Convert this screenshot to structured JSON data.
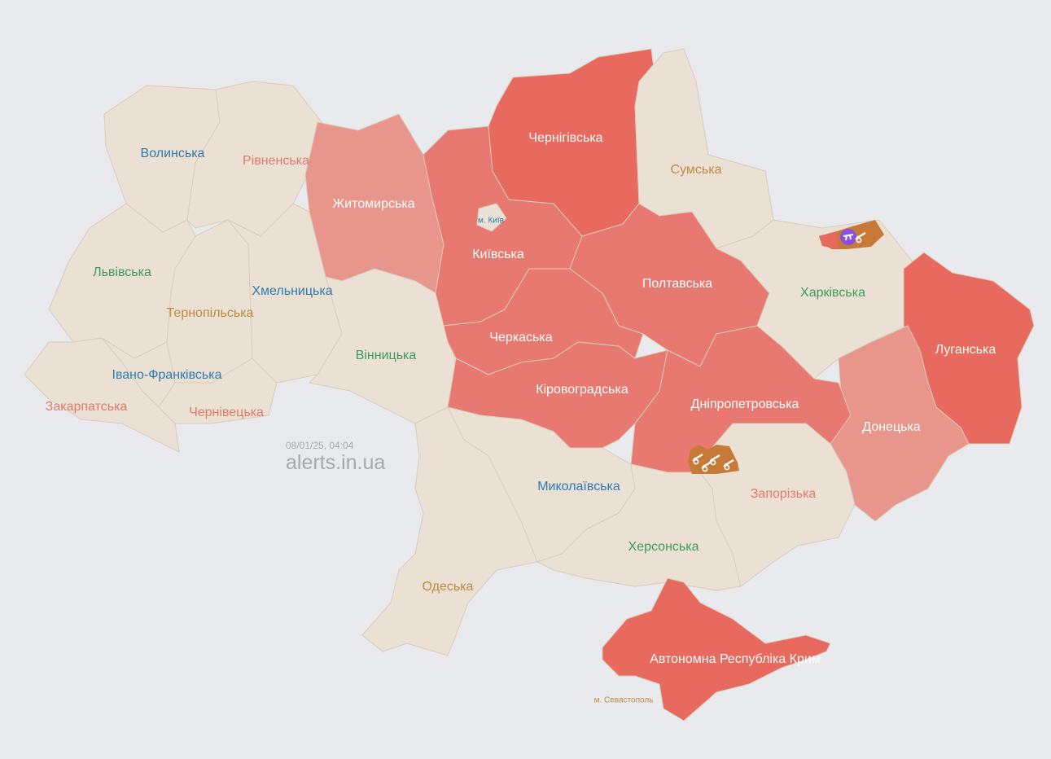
{
  "colors": {
    "background": "#e8eaed",
    "no_alert": "#eae0d4",
    "alert": "#e8695d",
    "alert_medium": "#e87970",
    "alert_light": "#e8958c",
    "occupied_artillery": "#c77a38",
    "drone_marker": "#8a4fe0"
  },
  "timestamp": "08/01/25, 04:04",
  "brand": "alerts.in.ua",
  "regions": [
    {
      "id": "volyn",
      "label": "Волинська",
      "status": "none",
      "label_color": "#2e7bb0"
    },
    {
      "id": "rivne",
      "label": "Рівненська",
      "status": "none",
      "label_color": "#e07a6a"
    },
    {
      "id": "lviv",
      "label": "Львівська",
      "status": "none",
      "label_color": "#3f9a5b"
    },
    {
      "id": "zakarpattia",
      "label": "Закарпатська",
      "status": "none",
      "label_color": "#e07a6a"
    },
    {
      "id": "ivano",
      "label": "Івано-Франківська",
      "status": "none",
      "label_color": "#2e7bb0"
    },
    {
      "id": "ternopil",
      "label": "Тернопільська",
      "status": "none",
      "label_color": "#c08a3e"
    },
    {
      "id": "chernivtsi",
      "label": "Чернівецька",
      "status": "none",
      "label_color": "#e07a6a"
    },
    {
      "id": "khmelnytskyi",
      "label": "Хмельницька",
      "status": "none",
      "label_color": "#2e7bb0"
    },
    {
      "id": "zhytomyr",
      "label": "Житомирська",
      "status": "alert_light",
      "label_color": "#ffffff"
    },
    {
      "id": "vinnytsia",
      "label": "Вінницька",
      "status": "none",
      "label_color": "#3f9a5b"
    },
    {
      "id": "kyivska",
      "label": "Київська",
      "status": "alert_medium",
      "label_color": "#ffffff"
    },
    {
      "id": "chernihiv",
      "label": "Чернігівська",
      "status": "alert",
      "label_color": "#ffffff"
    },
    {
      "id": "sumy",
      "label": "Сумська",
      "status": "none",
      "label_color": "#c08a3e"
    },
    {
      "id": "poltava",
      "label": "Полтавська",
      "status": "alert_medium",
      "label_color": "#ffffff"
    },
    {
      "id": "kharkiv",
      "label": "Харківська",
      "status": "none",
      "label_color": "#3f9a5b"
    },
    {
      "id": "luhansk",
      "label": "Луганська",
      "status": "alert",
      "label_color": "#ffffff"
    },
    {
      "id": "donetsk",
      "label": "Донецька",
      "status": "alert_light",
      "label_color": "#ffffff"
    },
    {
      "id": "dnipro",
      "label": "Дніпропетровська",
      "status": "alert_medium",
      "label_color": "#ffffff"
    },
    {
      "id": "cherkasy",
      "label": "Черкаська",
      "status": "alert_medium",
      "label_color": "#ffffff"
    },
    {
      "id": "kirovohrad",
      "label": "Кіровоградська",
      "status": "alert_medium",
      "label_color": "#ffffff"
    },
    {
      "id": "mykolaiv",
      "label": "Миколаївська",
      "status": "none",
      "label_color": "#2e7bb0"
    },
    {
      "id": "odesa",
      "label": "Одеська",
      "status": "none",
      "label_color": "#c08a3e"
    },
    {
      "id": "kherson",
      "label": "Херсонська",
      "status": "none",
      "label_color": "#3f9a5b"
    },
    {
      "id": "zaporizhzhia",
      "label": "Запорізька",
      "status": "none",
      "label_color": "#e07a6a"
    },
    {
      "id": "crimea",
      "label": "Автономна Республіка Крим",
      "status": "alert",
      "label_color": "#ffffff"
    },
    {
      "id": "kyiv_city",
      "label": "м. Київ",
      "status": "none",
      "label_color": "#2e7bb0",
      "small": true
    },
    {
      "id": "sevastopol",
      "label": "м. Севастополь",
      "status": "none",
      "label_color": "#c08a3e",
      "small": true
    }
  ],
  "markers": [
    {
      "id": "kharkiv-drone",
      "icon": "drone-icon"
    },
    {
      "id": "kharkiv-artillery",
      "icon": "artillery-icon"
    },
    {
      "id": "nikopol-artillery-1",
      "icon": "artillery-icon"
    },
    {
      "id": "nikopol-artillery-2",
      "icon": "artillery-icon"
    },
    {
      "id": "nikopol-artillery-3",
      "icon": "artillery-icon"
    },
    {
      "id": "nikopol-artillery-4",
      "icon": "artillery-icon"
    }
  ]
}
